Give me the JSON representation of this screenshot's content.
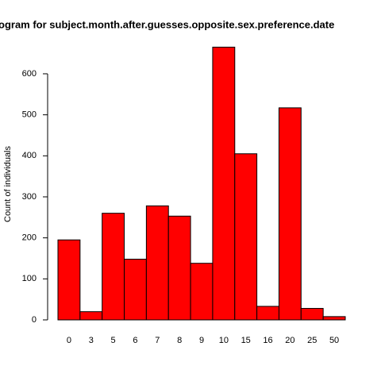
{
  "chart_data": {
    "type": "bar",
    "title": "ogram for subject.month.after.guesses.opposite.sex.preference.date",
    "y_label": "Count of individuals",
    "categories": [
      "0",
      "3",
      "5",
      "6",
      "7",
      "8",
      "9",
      "10",
      "15",
      "16",
      "20",
      "25",
      "50"
    ],
    "values": [
      195,
      20,
      260,
      148,
      278,
      253,
      138,
      665,
      405,
      33,
      517,
      28,
      8
    ],
    "color": "#ff0000",
    "ylim": [
      0,
      700
    ],
    "yticks": [
      0,
      100,
      200,
      300,
      400,
      500,
      600
    ],
    "grid": false
  }
}
